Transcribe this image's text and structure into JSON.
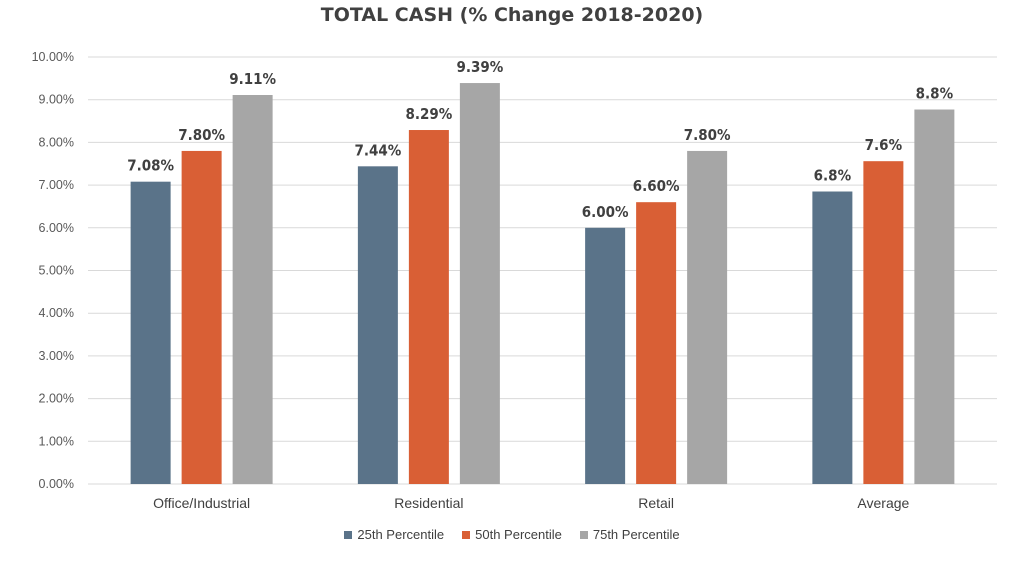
{
  "chart_data": {
    "type": "bar",
    "title": "TOTAL CASH (% Change 2018-2020)",
    "xlabel": "",
    "ylabel": "",
    "categories": [
      "Office/Industrial",
      "Residential",
      "Retail",
      "Average"
    ],
    "series": [
      {
        "name": "25th Percentile",
        "color": "#5a7389",
        "values": [
          7.08,
          7.44,
          6.0,
          6.85
        ],
        "labels": [
          "7.08%",
          "7.44%",
          "6.00%",
          "6.8%"
        ]
      },
      {
        "name": "50th Percentile",
        "color": "#d95f35",
        "values": [
          7.8,
          8.29,
          6.6,
          7.56
        ],
        "labels": [
          "7.80%",
          "8.29%",
          "6.60%",
          "7.6%"
        ]
      },
      {
        "name": "75th Percentile",
        "color": "#a6a6a6",
        "values": [
          9.11,
          9.39,
          7.8,
          8.77
        ],
        "labels": [
          "9.11%",
          "9.39%",
          "7.80%",
          "8.8%"
        ]
      }
    ],
    "ylim": [
      0,
      10
    ],
    "yticks": [
      {
        "value": 0,
        "label": "0.00%"
      },
      {
        "value": 1,
        "label": "1.00%"
      },
      {
        "value": 2,
        "label": "2.00%"
      },
      {
        "value": 3,
        "label": "3.00%"
      },
      {
        "value": 4,
        "label": "4.00%"
      },
      {
        "value": 5,
        "label": "5.00%"
      },
      {
        "value": 6,
        "label": "6.00%"
      },
      {
        "value": 7,
        "label": "7.00%"
      },
      {
        "value": 8,
        "label": "8.00%"
      },
      {
        "value": 9,
        "label": "9.00%"
      },
      {
        "value": 10,
        "label": "10.00%"
      }
    ],
    "grid": true,
    "legend_position": "bottom"
  }
}
